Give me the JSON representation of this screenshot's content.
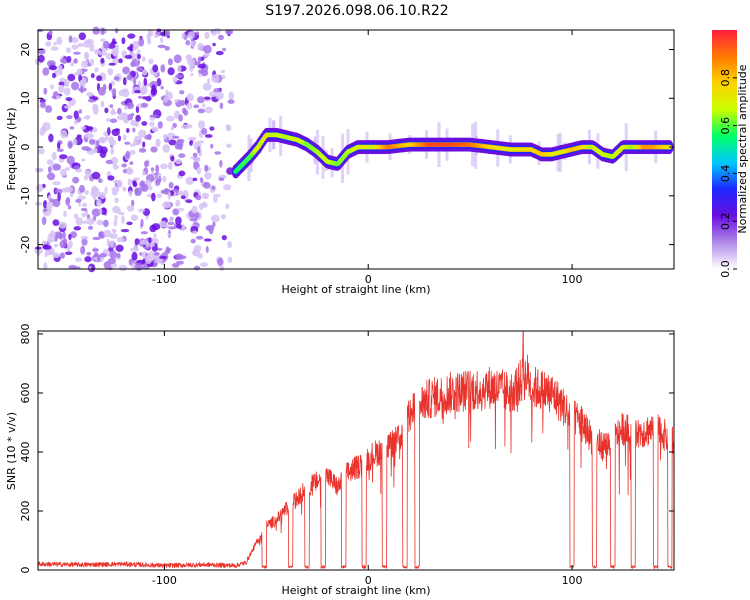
{
  "title": "S197.2026.098.06.10.R22",
  "colors": {
    "snr_line": "#e8322b",
    "spectrum_scatter": "#7a2be6",
    "frame": "#000000"
  },
  "chart_data": [
    {
      "type": "heatmap",
      "name": "spectrogram",
      "xlabel": "Height of straight line (km)",
      "ylabel": "Frequency (Hz)",
      "xlim": [
        -162,
        150
      ],
      "ylim": [
        -25,
        24
      ],
      "xticks": [
        -100,
        0,
        100
      ],
      "yticks": [
        -20,
        -10,
        0,
        10,
        20
      ],
      "colorbar": {
        "label": "Normalized spectral amplitude",
        "range": [
          0.0,
          1.0
        ],
        "ticks": [
          0.0,
          0.2,
          0.4,
          0.6,
          0.8
        ],
        "colormap": [
          "#ffffff",
          "#b08ae8",
          "#6a0fe0",
          "#1e28ff",
          "#00c8ff",
          "#00ff66",
          "#c8ff00",
          "#ffd200",
          "#ff7a00",
          "#ff1e3c"
        ]
      },
      "noise_region_x": [
        -162,
        -65
      ],
      "ridge": {
        "x": [
          -65,
          -58,
          -54,
          -50,
          -45,
          -40,
          -35,
          -30,
          -25,
          -20,
          -15,
          -10,
          -5,
          0,
          10,
          20,
          30,
          40,
          50,
          60,
          70,
          80,
          85,
          90,
          95,
          100,
          105,
          110,
          115,
          120,
          125,
          130,
          135,
          140,
          145,
          148
        ],
        "y": [
          -5,
          -2,
          0,
          2.5,
          2.5,
          2,
          1.5,
          0.5,
          -1,
          -3,
          -3.5,
          -1,
          0,
          0,
          0,
          0.5,
          0.5,
          0.5,
          0.5,
          0,
          -0.5,
          -0.5,
          -1.5,
          -1.5,
          -1,
          -0.5,
          0,
          0,
          -1.5,
          -2,
          0,
          0,
          0,
          0,
          0,
          0
        ],
        "amplitude": [
          0.35,
          0.4,
          0.6,
          0.75,
          0.55,
          0.5,
          0.6,
          0.45,
          0.5,
          0.55,
          0.45,
          0.5,
          0.6,
          0.6,
          0.9,
          0.75,
          0.95,
          0.95,
          0.9,
          0.75,
          0.7,
          0.75,
          0.8,
          0.7,
          0.7,
          0.8,
          0.75,
          0.6,
          0.55,
          0.5,
          0.7,
          0.6,
          0.85,
          0.85,
          0.75,
          0.7
        ]
      }
    },
    {
      "type": "line",
      "name": "snr",
      "xlabel": "Height of straight line (km)",
      "ylabel": "SNR (10 * v/v)",
      "xlim": [
        -162,
        150
      ],
      "ylim": [
        0,
        810
      ],
      "xticks": [
        -100,
        0,
        100
      ],
      "yticks": [
        0,
        200,
        400,
        600,
        800
      ],
      "envelope": {
        "x": [
          -162,
          -140,
          -120,
          -100,
          -80,
          -65,
          -60,
          -55,
          -50,
          -45,
          -40,
          -35,
          -30,
          -25,
          -20,
          -15,
          -10,
          -5,
          0,
          5,
          10,
          15,
          20,
          25,
          30,
          40,
          50,
          60,
          70,
          75,
          78,
          80,
          85,
          90,
          95,
          100,
          105,
          110,
          115,
          120,
          125,
          130,
          135,
          140,
          145,
          150
        ],
        "y": [
          20,
          18,
          20,
          15,
          18,
          15,
          25,
          90,
          150,
          170,
          210,
          240,
          280,
          300,
          320,
          280,
          330,
          350,
          380,
          400,
          420,
          440,
          520,
          560,
          580,
          600,
          610,
          620,
          600,
          640,
          660,
          620,
          610,
          600,
          560,
          520,
          500,
          440,
          420,
          440,
          480,
          460,
          470,
          480,
          460,
          430
        ]
      },
      "dropouts_x": [
        -51,
        -38,
        -30,
        -22,
        -12,
        -2,
        8,
        18,
        24,
        100,
        111,
        120,
        130,
        141,
        148
      ],
      "peak": {
        "x": 76,
        "y": 810
      }
    }
  ]
}
